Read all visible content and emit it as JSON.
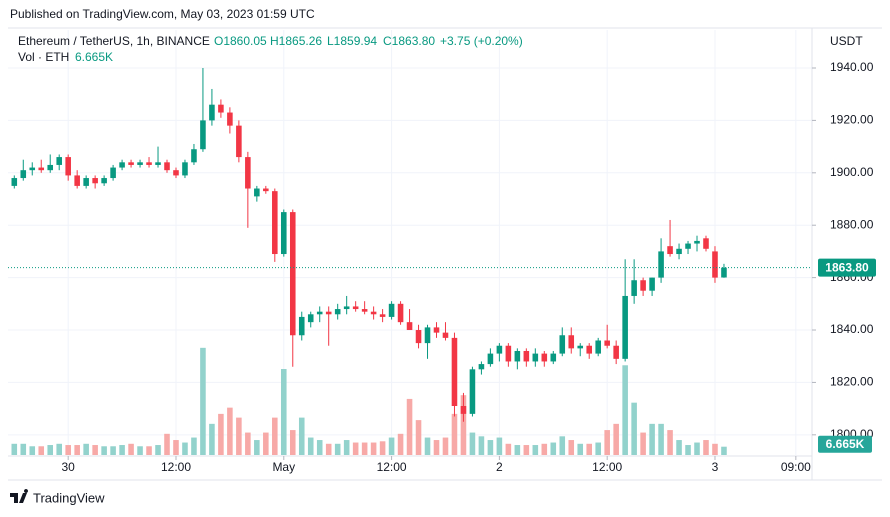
{
  "chart_data": {
    "type": "candlestick",
    "published": "Published on TradingView.com, May 03, 2023 01:59 UTC",
    "symbol": "Ethereum / TetherUS, 1h, BINANCE",
    "ohlc": [
      "O1860.05",
      "H1865.26",
      "L1859.94",
      "C1863.80",
      "+3.75 (+0.20%)"
    ],
    "volume_title": "Vol · ETH",
    "currency": "USDT",
    "brand": "TradingView",
    "price_label": "1863.80",
    "volume_value_label": "6.665K",
    "up_color": "#089981",
    "down_color": "#f23645",
    "volume_up_color": "#92d2cc",
    "volume_down_color": "#f7a9a7",
    "grid": true,
    "x": [
      0,
      1,
      2,
      3,
      4,
      5,
      6,
      7,
      8,
      9,
      10,
      11,
      12,
      13,
      14,
      15,
      16,
      17,
      18,
      19,
      20,
      21,
      22,
      23,
      24,
      25,
      26,
      27,
      28,
      29,
      30,
      31,
      32,
      33,
      34,
      35,
      36,
      37,
      38,
      39,
      40,
      41,
      42,
      43,
      44,
      45,
      46,
      47,
      48,
      49,
      50,
      51,
      52,
      53,
      54,
      55,
      56,
      57,
      58,
      59,
      60,
      61,
      62,
      63,
      64,
      65,
      66,
      67,
      68,
      69,
      70,
      71,
      72,
      73,
      74,
      75,
      76,
      77,
      78,
      79
    ],
    "open": [
      1895,
      1898,
      1901,
      1902,
      1901,
      1903,
      1906,
      1899,
      1895,
      1898,
      1896,
      1898,
      1902,
      1904,
      1903,
      1904,
      1903,
      1904,
      1901,
      1899,
      1904,
      1909,
      1920,
      1926,
      1923,
      1918,
      1906,
      1891,
      1894,
      1893,
      1869,
      1885,
      1838,
      1843,
      1846,
      1847,
      1846,
      1848,
      1849,
      1848,
      1847,
      1846,
      1845,
      1850,
      1843,
      1840,
      1835,
      1841,
      1839,
      1837,
      1811,
      1808,
      1825,
      1827,
      1831,
      1834,
      1828,
      1832,
      1828,
      1831,
      1828,
      1831,
      1838,
      1833,
      1834,
      1831,
      1836,
      1834,
      1829,
      1853,
      1859,
      1855,
      1860,
      1872,
      1869,
      1871,
      1873,
      1875,
      1870,
      1860.05
    ],
    "high": [
      1899,
      1905,
      1904,
      1905,
      1907,
      1907,
      1907,
      1901,
      1899,
      1899,
      1899,
      1903,
      1905,
      1905,
      1905,
      1906,
      1910,
      1905,
      1902,
      1905,
      1911,
      1940,
      1932,
      1928,
      1925,
      1920,
      1908,
      1895,
      1895,
      1894,
      1886,
      1886,
      1847,
      1847,
      1849,
      1849,
      1850,
      1853,
      1851,
      1851,
      1849,
      1848,
      1851,
      1851,
      1848,
      1842,
      1842,
      1843,
      1843,
      1839,
      1816,
      1826,
      1828,
      1833,
      1835,
      1835,
      1833,
      1833,
      1833,
      1832,
      1832,
      1841,
      1841,
      1835,
      1835,
      1837,
      1842,
      1836,
      1867,
      1867,
      1860,
      1860,
      1875,
      1882,
      1873,
      1874,
      1876,
      1876,
      1872,
      1865.26
    ],
    "low": [
      1894,
      1897,
      1899,
      1900,
      1900,
      1901,
      1897,
      1894,
      1894,
      1894,
      1895,
      1897,
      1901,
      1902,
      1902,
      1902,
      1902,
      1900,
      1898,
      1898,
      1903,
      1908,
      1918,
      1921,
      1915,
      1904,
      1879,
      1889,
      1892,
      1866,
      1868,
      1826,
      1836,
      1841,
      1843,
      1834,
      1844,
      1846,
      1847,
      1846,
      1844,
      1843,
      1844,
      1842,
      1840,
      1833,
      1829,
      1837,
      1836,
      1807,
      1805,
      1807,
      1823,
      1826,
      1828,
      1826,
      1825,
      1826,
      1826,
      1826,
      1827,
      1830,
      1831,
      1830,
      1829,
      1830,
      1833,
      1827,
      1828,
      1850,
      1853,
      1853,
      1858,
      1868,
      1867,
      1869,
      1870,
      1870,
      1858,
      1859.94
    ],
    "close": [
      1898,
      1901,
      1902,
      1901,
      1903,
      1906,
      1899,
      1895,
      1898,
      1896,
      1898,
      1902,
      1904,
      1903,
      1904,
      1903,
      1904,
      1901,
      1899,
      1904,
      1909,
      1920,
      1926,
      1923,
      1918,
      1906,
      1894,
      1894,
      1893,
      1869,
      1885,
      1838,
      1845,
      1846,
      1847,
      1846,
      1848,
      1849,
      1848,
      1847,
      1846,
      1845,
      1850,
      1843,
      1840,
      1835,
      1841,
      1839,
      1837,
      1811,
      1808,
      1825,
      1827,
      1831,
      1834,
      1828,
      1832,
      1828,
      1831,
      1828,
      1831,
      1838,
      1833,
      1834,
      1831,
      1836,
      1834,
      1829,
      1853,
      1859,
      1855,
      1860,
      1870,
      1869,
      1871,
      1873,
      1874,
      1871,
      1860,
      1863.8
    ],
    "volume": [
      9,
      9,
      7,
      7,
      8,
      9,
      8,
      8,
      9,
      8,
      7,
      7,
      8,
      9,
      7,
      7,
      8,
      17,
      12,
      10,
      14,
      86,
      25,
      33,
      38,
      30,
      18,
      12,
      18,
      30,
      69,
      20,
      30,
      14,
      12,
      9,
      9,
      12,
      10,
      10,
      10,
      11,
      14,
      17,
      45,
      28,
      14,
      12,
      14,
      33,
      48,
      18,
      15,
      12,
      14,
      9,
      8,
      8,
      8,
      9,
      10,
      15,
      12,
      9,
      9,
      10,
      20,
      25,
      72,
      42,
      18,
      25,
      25,
      20,
      12,
      8,
      10,
      12,
      9,
      6.665
    ],
    "xlim": [
      -0.7,
      88.8
    ],
    "xticks": [
      {
        "value": 6,
        "label": "30"
      },
      {
        "value": 18,
        "label": "12:00"
      },
      {
        "value": 30,
        "label": "May"
      },
      {
        "value": 42,
        "label": "12:00"
      },
      {
        "value": 54,
        "label": "2"
      },
      {
        "value": 66,
        "label": "12:00"
      },
      {
        "value": 78,
        "label": "3"
      },
      {
        "value": 87,
        "label": "09:00"
      }
    ],
    "ylim": [
      1792.3,
      1954.5
    ],
    "yticks": [
      {
        "value": 1800,
        "label": "1800.00"
      },
      {
        "value": 1820,
        "label": "1820.00"
      },
      {
        "value": 1840,
        "label": "1840.00"
      },
      {
        "value": 1860,
        "label": "1860.00"
      },
      {
        "value": 1880,
        "label": "1880.00"
      },
      {
        "value": 1900,
        "label": "1900.00"
      },
      {
        "value": 1920,
        "label": "1920.00"
      },
      {
        "value": 1940,
        "label": "1940.00"
      }
    ],
    "vlim": [
      0,
      130
    ]
  }
}
